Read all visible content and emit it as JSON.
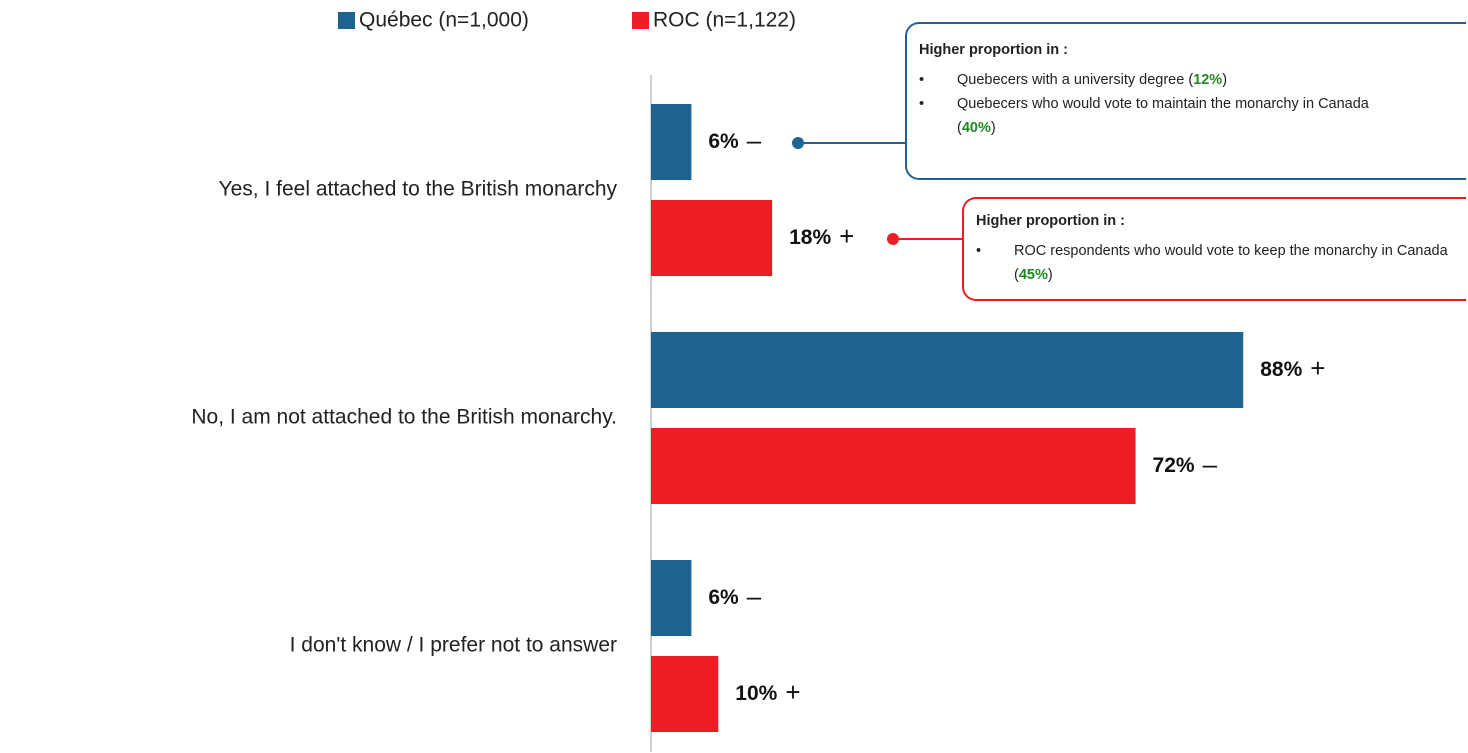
{
  "chart_data": {
    "type": "bar",
    "orientation": "horizontal",
    "categories": [
      "Yes, I feel attached to the British monarchy",
      "No, I am not attached to the British monarchy.",
      "I don't know / I prefer not to answer"
    ],
    "series": [
      {
        "name": "Québec (n=1,000)",
        "color": "#1f6391",
        "values": [
          6,
          88,
          6
        ],
        "value_labels": [
          "6%",
          "88%",
          "6%"
        ],
        "markers": [
          "–",
          "+",
          "–"
        ]
      },
      {
        "name": "ROC (n=1,122)",
        "color": "#ee1c25",
        "values": [
          18,
          72,
          10
        ],
        "value_labels": [
          "18%",
          "72%",
          "10%"
        ],
        "markers": [
          "+",
          "–",
          "+"
        ]
      }
    ],
    "xlim": [
      0,
      100
    ],
    "annotations": [
      {
        "title": "Higher proportion in :",
        "items": [
          {
            "text": "Quebecers with a university degree (",
            "highlight": "12%",
            "close": ")"
          },
          {
            "text": "Quebecers who would vote to maintain the monarchy in Canada (",
            "highlight": "40%",
            "close": ")"
          }
        ]
      },
      {
        "title": "Higher proportion in :",
        "items": [
          {
            "text": "ROC respondents who would vote to keep the monarchy in Canada (",
            "highlight": "45%",
            "close": ")"
          }
        ]
      }
    ]
  }
}
